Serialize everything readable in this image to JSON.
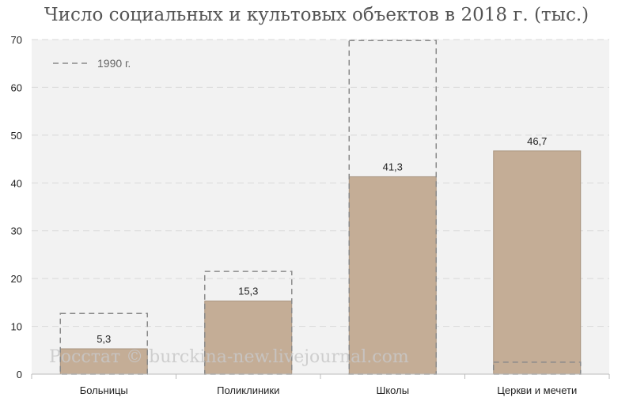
{
  "chart_data": {
    "type": "bar",
    "title": "Число социальных и культовых объектов в 2018 г. (тыс.)",
    "categories": [
      "Больницы",
      "Поликлиники",
      "Школы",
      "Церкви и мечети"
    ],
    "series": [
      {
        "name": "2018 г.",
        "values": [
          5.3,
          15.3,
          41.3,
          46.7
        ]
      },
      {
        "name": "1990 г.",
        "values": [
          12.7,
          21.5,
          69.8,
          2.5
        ]
      }
    ],
    "value_labels": [
      "5,3",
      "15,3",
      "41,3",
      "46,7"
    ],
    "ylim": [
      0,
      70
    ],
    "yticks": [
      0,
      10,
      20,
      30,
      40,
      50,
      60,
      70
    ],
    "grid": true,
    "legend": {
      "label": "1990 г.",
      "position": "top-left"
    },
    "colors": {
      "bar": "#c4ad96",
      "bar_border": "#a99580",
      "dashed": "#8a8a8a",
      "plot_bg": "#f2f2f2",
      "grid": "#d9d9d9"
    },
    "watermark": "Росстат © burckina-new.livejournal.com"
  }
}
